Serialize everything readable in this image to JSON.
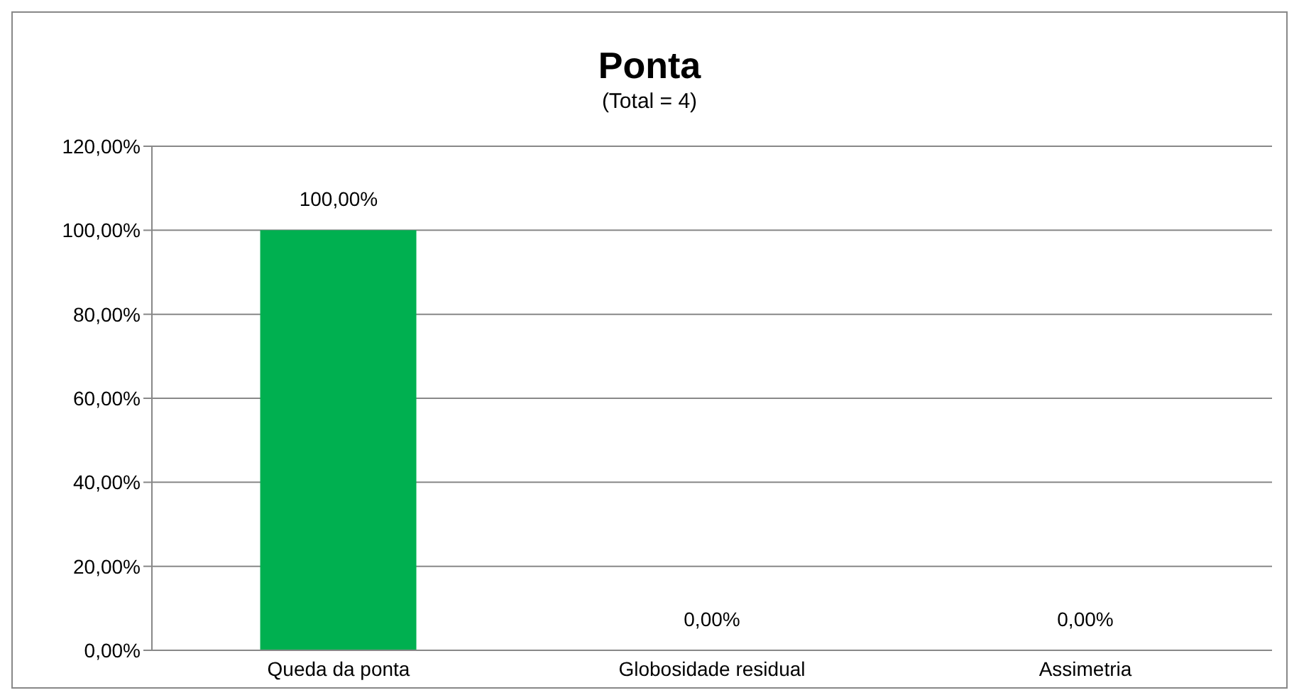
{
  "chart_data": {
    "type": "bar",
    "title": "Ponta",
    "subtitle": "(Total = 4)",
    "categories": [
      "Queda da ponta",
      "Globosidade residual",
      "Assimetria"
    ],
    "values": [
      100,
      0,
      0
    ],
    "color": "#00b050",
    "value_labels": [
      "100,00%",
      "0,00%",
      "0,00%"
    ],
    "ylim": [
      0,
      120
    ],
    "yticks": [
      {
        "value": 0,
        "label": "0,00%"
      },
      {
        "value": 20,
        "label": "20,00%"
      },
      {
        "value": 40,
        "label": "40,00%"
      },
      {
        "value": 60,
        "label": "60,00%"
      },
      {
        "value": 80,
        "label": "80,00%"
      },
      {
        "value": 100,
        "label": "100,00%"
      },
      {
        "value": 120,
        "label": "120,00%"
      }
    ],
    "grid": "y"
  }
}
